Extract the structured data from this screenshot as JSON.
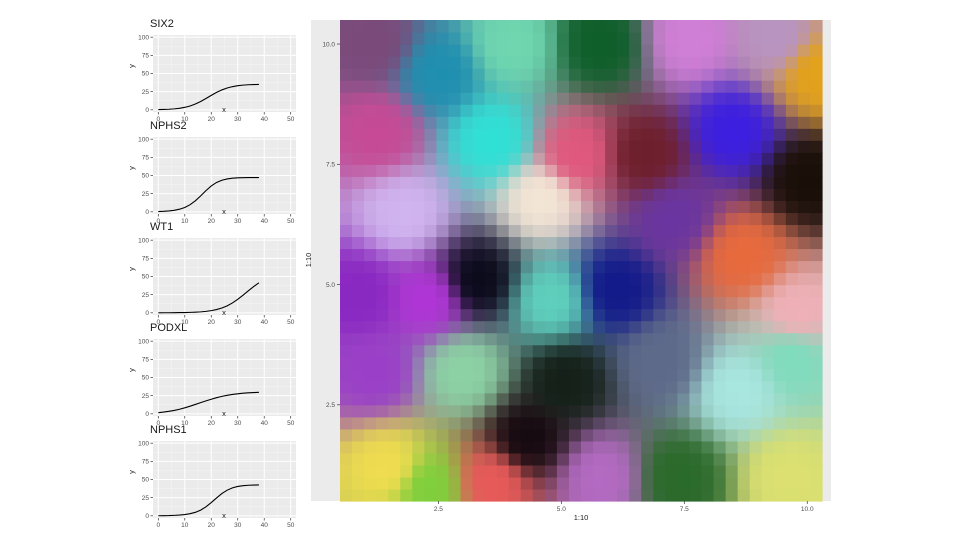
{
  "chart_data": [
    {
      "type": "line",
      "title": "SIX2",
      "xlabel": "x",
      "ylabel": "y",
      "xlim": [
        -2,
        52
      ],
      "ylim": [
        -3,
        103
      ],
      "x_ticks": [
        0,
        10,
        20,
        30,
        40,
        50
      ],
      "y_ticks": [
        0,
        25,
        50,
        75,
        100
      ],
      "x_tick_labels": [
        "0",
        "10",
        "20",
        "30",
        "40",
        "50"
      ],
      "y_tick_labels": [
        "0",
        "25",
        "50",
        "75",
        "100"
      ],
      "grid": true,
      "series": [
        {
          "x": [
            0,
            2,
            4,
            6,
            8,
            10,
            12,
            14,
            16,
            18,
            20,
            22,
            24,
            26,
            28,
            30,
            32,
            34,
            36,
            38
          ],
          "y": [
            0.3,
            0.5,
            0.8,
            1.3,
            2.1,
            3.4,
            5.3,
            8.0,
            11.5,
            15.6,
            19.9,
            24.0,
            27.4,
            30.0,
            31.9,
            33.2,
            34.0,
            34.5,
            34.8,
            35.0
          ]
        }
      ]
    },
    {
      "type": "line",
      "title": "NPHS2",
      "xlabel": "x",
      "ylabel": "y",
      "xlim": [
        -2,
        52
      ],
      "ylim": [
        -3,
        103
      ],
      "x_ticks": [
        0,
        10,
        20,
        30,
        40,
        50
      ],
      "y_ticks": [
        0,
        25,
        50,
        75,
        100
      ],
      "x_tick_labels": [
        "0",
        "10",
        "20",
        "30",
        "40",
        "50"
      ],
      "y_tick_labels": [
        "0",
        "25",
        "50",
        "75",
        "100"
      ],
      "grid": true,
      "series": [
        {
          "x": [
            0,
            2,
            4,
            6,
            8,
            10,
            12,
            14,
            16,
            18,
            20,
            22,
            24,
            26,
            28,
            30,
            32,
            34,
            36,
            38
          ],
          "y": [
            0.4,
            0.7,
            1.2,
            2.1,
            3.6,
            6.0,
            9.8,
            15.2,
            22.0,
            29.2,
            35.6,
            40.4,
            43.5,
            45.3,
            46.3,
            46.8,
            47.0,
            47.1,
            47.1,
            47.1
          ]
        }
      ]
    },
    {
      "type": "line",
      "title": "WT1",
      "xlabel": "x",
      "ylabel": "y",
      "xlim": [
        -2,
        52
      ],
      "ylim": [
        -3,
        103
      ],
      "x_ticks": [
        0,
        10,
        20,
        30,
        40,
        50
      ],
      "y_ticks": [
        0,
        25,
        50,
        75,
        100
      ],
      "x_tick_labels": [
        "0",
        "10",
        "20",
        "30",
        "40",
        "50"
      ],
      "y_tick_labels": [
        "0",
        "25",
        "50",
        "75",
        "100"
      ],
      "grid": true,
      "series": [
        {
          "x": [
            0,
            2,
            4,
            6,
            8,
            10,
            12,
            14,
            16,
            18,
            20,
            22,
            24,
            26,
            28,
            30,
            32,
            34,
            36,
            38
          ],
          "y": [
            0.0,
            0.1,
            0.1,
            0.2,
            0.3,
            0.4,
            0.6,
            0.9,
            1.3,
            2.0,
            3.0,
            4.5,
            6.6,
            9.6,
            13.6,
            18.6,
            24.3,
            30.3,
            36.1,
            41.3
          ]
        }
      ]
    },
    {
      "type": "line",
      "title": "PODXL",
      "xlabel": "x",
      "ylabel": "y",
      "xlim": [
        -2,
        52
      ],
      "ylim": [
        -3,
        103
      ],
      "x_ticks": [
        0,
        10,
        20,
        30,
        40,
        50
      ],
      "y_ticks": [
        0,
        25,
        50,
        75,
        100
      ],
      "x_tick_labels": [
        "0",
        "10",
        "20",
        "30",
        "40",
        "50"
      ],
      "y_tick_labels": [
        "0",
        "25",
        "50",
        "75",
        "100"
      ],
      "grid": true,
      "series": [
        {
          "x": [
            0,
            2,
            4,
            6,
            8,
            10,
            12,
            14,
            16,
            18,
            20,
            22,
            24,
            26,
            28,
            30,
            32,
            34,
            36,
            38
          ],
          "y": [
            1.6,
            2.4,
            3.4,
            4.7,
            6.3,
            8.3,
            10.5,
            12.9,
            15.4,
            17.8,
            20.1,
            22.2,
            24.0,
            25.5,
            26.7,
            27.6,
            28.4,
            28.9,
            29.3,
            29.6
          ]
        }
      ]
    },
    {
      "type": "line",
      "title": "NPHS1",
      "xlabel": "x",
      "ylabel": "y",
      "xlim": [
        -2,
        52
      ],
      "ylim": [
        -3,
        103
      ],
      "x_ticks": [
        0,
        10,
        20,
        30,
        40,
        50
      ],
      "y_ticks": [
        0,
        25,
        50,
        75,
        100
      ],
      "x_tick_labels": [
        "0",
        "10",
        "20",
        "30",
        "40",
        "50"
      ],
      "y_tick_labels": [
        "0",
        "25",
        "50",
        "75",
        "100"
      ],
      "grid": true,
      "series": [
        {
          "x": [
            0,
            2,
            4,
            6,
            8,
            10,
            12,
            14,
            16,
            18,
            20,
            22,
            24,
            26,
            28,
            30,
            32,
            34,
            36,
            38
          ],
          "y": [
            0.1,
            0.2,
            0.3,
            0.6,
            1.0,
            1.7,
            2.9,
            4.8,
            7.9,
            12.4,
            18.2,
            24.6,
            30.6,
            35.3,
            38.5,
            40.4,
            41.5,
            42.1,
            42.4,
            42.5
          ]
        }
      ]
    },
    {
      "type": "heatmap",
      "title": "",
      "xlabel": "1:10",
      "ylabel": "1:10",
      "xlim": [
        0.5,
        10.3
      ],
      "ylim": [
        0.5,
        10.5
      ],
      "x_ticks": [
        2.5,
        5.0,
        7.5,
        10.0
      ],
      "y_ticks": [
        2.5,
        5.0,
        7.5,
        10.0
      ],
      "x_tick_labels": [
        "2.5",
        "5.0",
        "7.5",
        "10.0"
      ],
      "y_tick_labels": [
        "2.5",
        "5.0",
        "7.5",
        "10.0"
      ],
      "grid": false,
      "color_anchors": [
        {
          "x": 1.2,
          "y": 10.0,
          "color": "#7a4a7a"
        },
        {
          "x": 2.5,
          "y": 9.4,
          "color": "#1f8fb0"
        },
        {
          "x": 4.0,
          "y": 10.0,
          "color": "#6fd6b0"
        },
        {
          "x": 5.8,
          "y": 10.0,
          "color": "#0f5f2a"
        },
        {
          "x": 7.6,
          "y": 10.1,
          "color": "#d07fd6"
        },
        {
          "x": 9.4,
          "y": 10.1,
          "color": "#b894c2"
        },
        {
          "x": 10.2,
          "y": 9.4,
          "color": "#e3a21a"
        },
        {
          "x": 1.3,
          "y": 8.2,
          "color": "#c64a95"
        },
        {
          "x": 3.6,
          "y": 8.0,
          "color": "#30e0d5"
        },
        {
          "x": 5.3,
          "y": 7.7,
          "color": "#e0577d"
        },
        {
          "x": 6.7,
          "y": 7.7,
          "color": "#6e1f2c"
        },
        {
          "x": 8.5,
          "y": 8.2,
          "color": "#3c1fe0"
        },
        {
          "x": 10.0,
          "y": 7.2,
          "color": "#1a0f08"
        },
        {
          "x": 1.8,
          "y": 6.5,
          "color": "#d0b4ef"
        },
        {
          "x": 4.6,
          "y": 6.8,
          "color": "#f3e6d6"
        },
        {
          "x": 7.3,
          "y": 6.4,
          "color": "#6a35a0"
        },
        {
          "x": 8.7,
          "y": 5.6,
          "color": "#e76a3c"
        },
        {
          "x": 0.9,
          "y": 4.8,
          "color": "#8a28c2"
        },
        {
          "x": 2.3,
          "y": 4.7,
          "color": "#b036d6"
        },
        {
          "x": 3.3,
          "y": 5.1,
          "color": "#0a0a1a"
        },
        {
          "x": 4.8,
          "y": 4.7,
          "color": "#5fd0bd"
        },
        {
          "x": 6.1,
          "y": 4.9,
          "color": "#12198a"
        },
        {
          "x": 9.8,
          "y": 4.4,
          "color": "#f0b0b7"
        },
        {
          "x": 1.2,
          "y": 3.2,
          "color": "#9a40c8"
        },
        {
          "x": 3.0,
          "y": 3.2,
          "color": "#8cd2a4"
        },
        {
          "x": 5.1,
          "y": 3.0,
          "color": "#142018"
        },
        {
          "x": 7.0,
          "y": 3.4,
          "color": "#5e6a8a"
        },
        {
          "x": 8.6,
          "y": 2.8,
          "color": "#a8e6e0"
        },
        {
          "x": 9.7,
          "y": 3.5,
          "color": "#7fdcbd"
        },
        {
          "x": 1.5,
          "y": 1.2,
          "color": "#f0dc50"
        },
        {
          "x": 2.3,
          "y": 0.8,
          "color": "#7fcf3c"
        },
        {
          "x": 3.6,
          "y": 0.9,
          "color": "#e85a5a"
        },
        {
          "x": 4.3,
          "y": 1.8,
          "color": "#150a10"
        },
        {
          "x": 5.8,
          "y": 1.0,
          "color": "#b36ac2"
        },
        {
          "x": 7.4,
          "y": 1.0,
          "color": "#2a6a2a"
        },
        {
          "x": 9.6,
          "y": 1.0,
          "color": "#dbe070"
        }
      ]
    }
  ]
}
